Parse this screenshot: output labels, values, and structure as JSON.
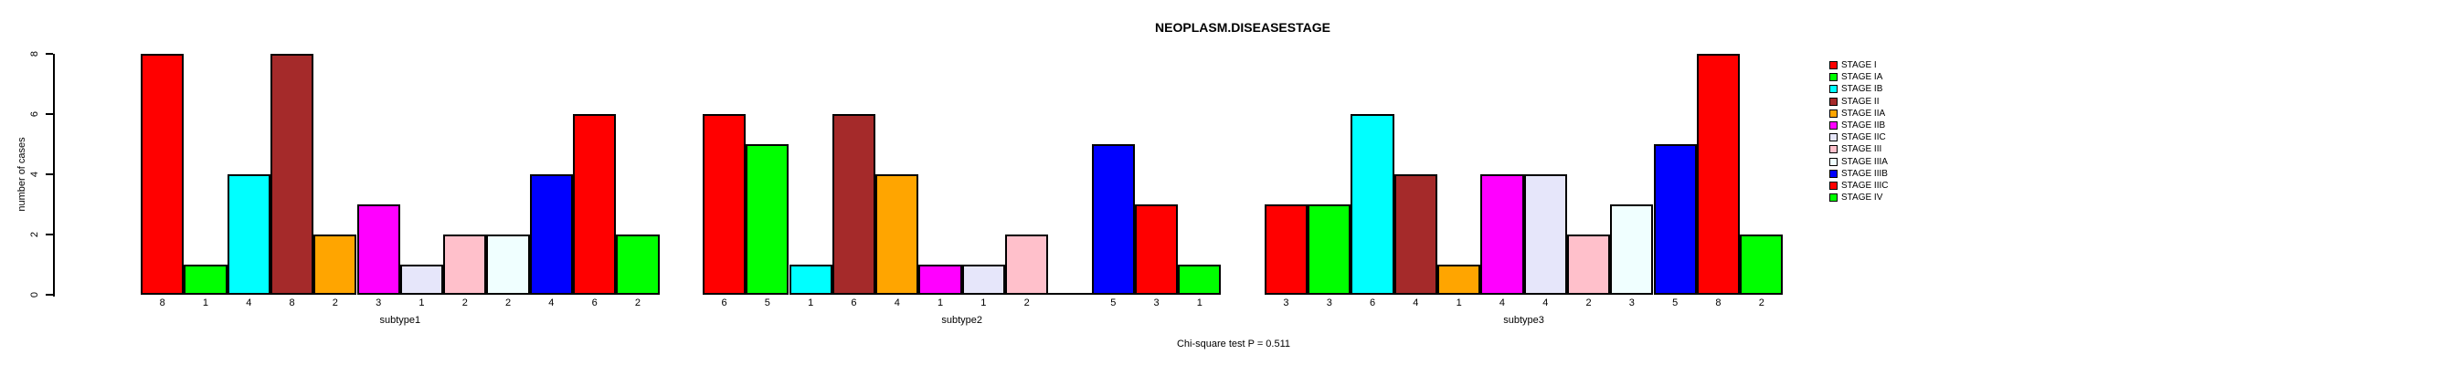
{
  "chart_data": {
    "type": "bar",
    "title": "NEOPLASM.DISEASESTAGE",
    "ylabel": "number of cases",
    "xlabel": "",
    "ylim": [
      0,
      8
    ],
    "yticks": [
      0,
      2,
      4,
      6,
      8
    ],
    "categories": [
      "subtype1",
      "subtype2",
      "subtype3"
    ],
    "grid": false,
    "legend_position": "right",
    "bar_value_labels_shown": true,
    "annotation": "Chi-square test P = 0.511",
    "series": [
      {
        "name": "STAGE I",
        "color": "#FF0000",
        "values": [
          8,
          6,
          3
        ]
      },
      {
        "name": "STAGE IA",
        "color": "#00FF00",
        "values": [
          1,
          5,
          3
        ]
      },
      {
        "name": "STAGE IB",
        "color": "#00FFFF",
        "values": [
          4,
          1,
          6
        ]
      },
      {
        "name": "STAGE II",
        "color": "#A52A2A",
        "values": [
          8,
          6,
          4
        ]
      },
      {
        "name": "STAGE IIA",
        "color": "#FFA500",
        "values": [
          2,
          4,
          1
        ]
      },
      {
        "name": "STAGE IIB",
        "color": "#FF00FF",
        "values": [
          3,
          1,
          4
        ]
      },
      {
        "name": "STAGE IIC",
        "color": "#E6E6FA",
        "values": [
          1,
          1,
          4
        ]
      },
      {
        "name": "STAGE III",
        "color": "#FFC0CB",
        "values": [
          2,
          2,
          2
        ]
      },
      {
        "name": "STAGE IIIA",
        "color": "#F0FFFF",
        "values": [
          2,
          0,
          3
        ]
      },
      {
        "name": "STAGE IIIB",
        "color": "#0000FF",
        "values": [
          4,
          5,
          5
        ]
      },
      {
        "name": "STAGE IIIC",
        "color": "#FF0000",
        "values": [
          6,
          3,
          8
        ]
      },
      {
        "name": "STAGE IV",
        "color": "#00FF00",
        "values": [
          2,
          1,
          2
        ]
      }
    ]
  }
}
